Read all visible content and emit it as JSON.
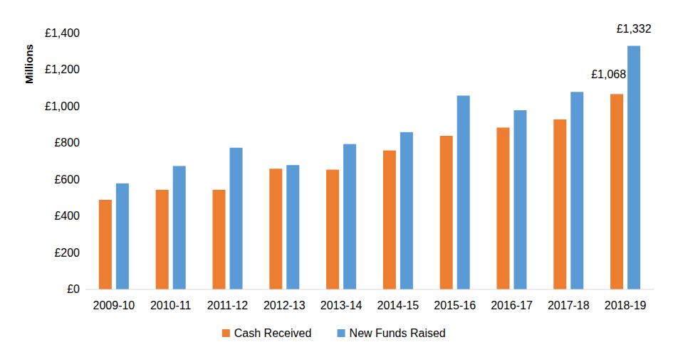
{
  "chart_data": {
    "type": "bar",
    "y_label": "Millions",
    "categories": [
      "2009-10",
      "2010-11",
      "2011-12",
      "2012-13",
      "2013-14",
      "2014-15",
      "2015-16",
      "2016-17",
      "2017-18",
      "2018-19"
    ],
    "series": [
      {
        "name": "Cash Received",
        "color": "#ed7d31",
        "values": [
          490,
          545,
          545,
          660,
          655,
          760,
          840,
          885,
          930,
          1068
        ],
        "value_labels": [
          null,
          null,
          null,
          null,
          null,
          null,
          null,
          null,
          null,
          "£1,068"
        ]
      },
      {
        "name": "New Funds Raised",
        "color": "#5b9bd5",
        "values": [
          580,
          675,
          775,
          680,
          795,
          860,
          1060,
          980,
          1080,
          1332
        ],
        "value_labels": [
          null,
          null,
          null,
          null,
          null,
          null,
          null,
          null,
          null,
          "£1,332"
        ]
      }
    ],
    "ylim": [
      0,
      1400
    ],
    "yticks": [
      {
        "value": 0,
        "label": "£0"
      },
      {
        "value": 200,
        "label": "£200"
      },
      {
        "value": 400,
        "label": "£400"
      },
      {
        "value": 600,
        "label": "£600"
      },
      {
        "value": 800,
        "label": "£800"
      },
      {
        "value": 1000,
        "label": "£1,000"
      },
      {
        "value": 1200,
        "label": "£1,200"
      },
      {
        "value": 1400,
        "label": "£1,400"
      }
    ],
    "grid": false,
    "legend": "bottom"
  }
}
